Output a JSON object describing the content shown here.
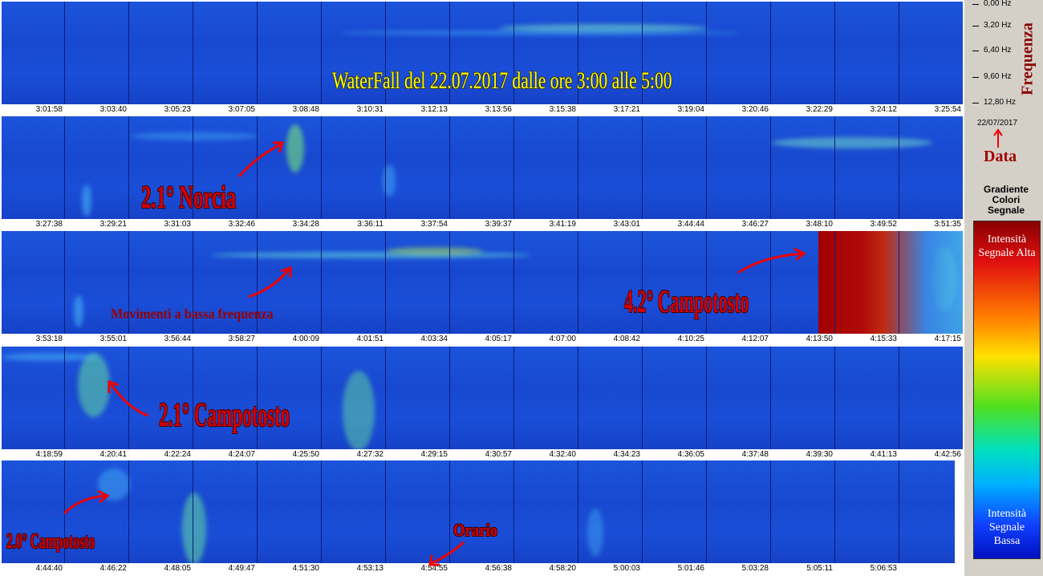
{
  "title": "WaterFall del 22.07.2017 dalle ore 3:00 alle 5:00",
  "frequency_axis": {
    "title": "Frequenza",
    "ticks": [
      "0,00 Hz",
      "3,20 Hz",
      "6,40 Hz",
      "9,60 Hz",
      "12,80 Hz"
    ]
  },
  "date": {
    "value": "22/07/2017",
    "label": "Data"
  },
  "legend": {
    "title": "Gradiente Colori Segnale",
    "high": "Intensità Segnale Alta",
    "low": "Intensità Segnale Bassa"
  },
  "rows": [
    {
      "times": [
        "3:01:58",
        "3:03:40",
        "3:05:23",
        "3:07:05",
        "3:08:48",
        "3:10:31",
        "3:12:13",
        "3:13:56",
        "3:15:38",
        "3:17:21",
        "3:19:04",
        "3:20:46",
        "3:22:29",
        "3:24:12",
        "3:25:54"
      ]
    },
    {
      "times": [
        "3:27:38",
        "3:29:21",
        "3:31:03",
        "3:32:46",
        "3:34:28",
        "3:36:11",
        "3:37:54",
        "3:39:37",
        "3:41:19",
        "3:43:01",
        "3:44:44",
        "3:46:27",
        "3:48:10",
        "3:49:52",
        "3:51:35"
      ]
    },
    {
      "times": [
        "3:53:18",
        "3:55:01",
        "3:56:44",
        "3:58:27",
        "4:00:09",
        "4:01:51",
        "4:03:34",
        "4:05:17",
        "4:07:00",
        "4:08:42",
        "4:10:25",
        "4:12:07",
        "4:13:50",
        "4:15:33",
        "4:17:15"
      ]
    },
    {
      "times": [
        "4:18:59",
        "4:20:41",
        "4:22:24",
        "4:24:07",
        "4:25:50",
        "4:27:32",
        "4:29:15",
        "4:30:57",
        "4:32:40",
        "4:34:23",
        "4:36:05",
        "4:37:48",
        "4:39:30",
        "4:41:13",
        "4:42:56"
      ]
    },
    {
      "times": [
        "4:44:40",
        "4:46:22",
        "4:48:05",
        "4:49:47",
        "4:51:30",
        "4:53:13",
        "4:54:55",
        "4:56:38",
        "4:58:20",
        "5:00:03",
        "5:01:46",
        "5:03:28",
        "5:05:11",
        "5:06:53"
      ]
    }
  ],
  "annotations": [
    "2.1° Norcia",
    "Movimenti a bassa frequenza",
    "4.2° Campotosto",
    "2.1° Campotosto",
    "2.0° Campotosto",
    "Orario"
  ]
}
